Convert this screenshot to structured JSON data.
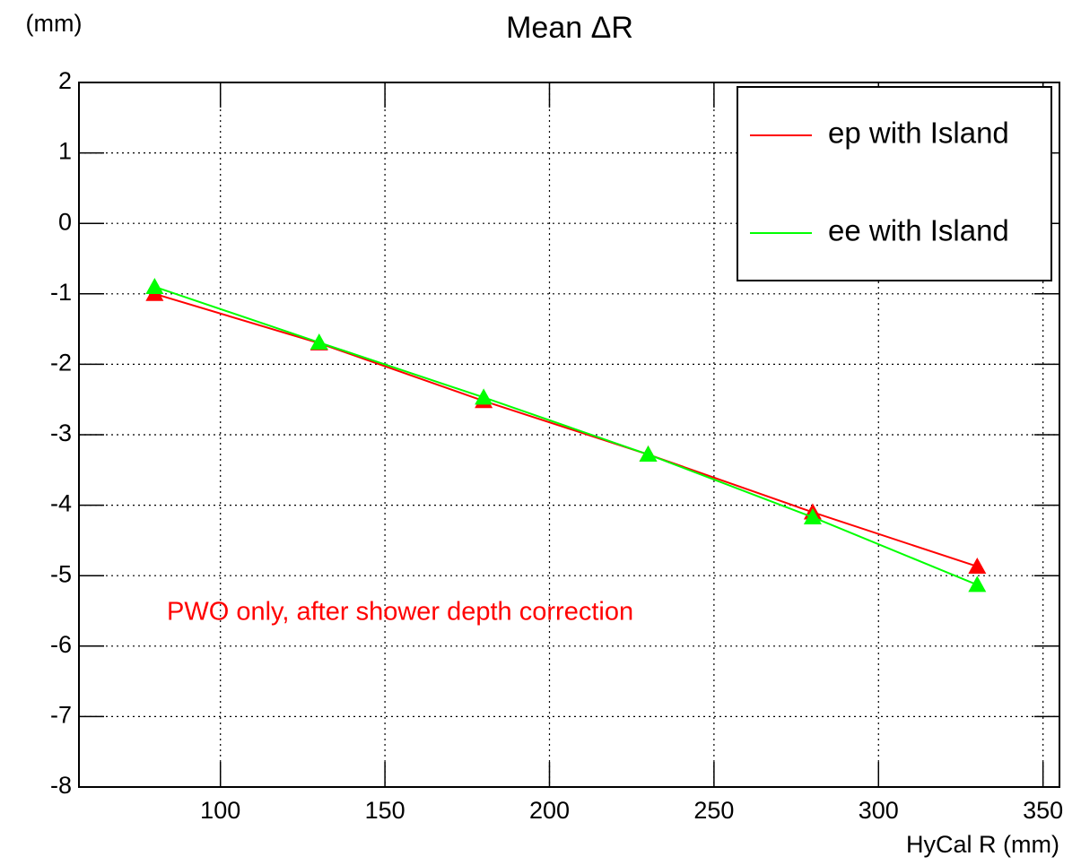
{
  "chart_data": {
    "type": "line",
    "title": "Mean ΔR",
    "y_label": "(mm)",
    "x_label": "HyCal R (mm)",
    "annotation": "PWO only, after shower depth correction",
    "x": [
      80,
      130,
      180,
      230,
      280,
      330
    ],
    "series": [
      {
        "name": "ep with Island",
        "color": "#ff0000",
        "values": [
          -1.0,
          -1.7,
          -2.52,
          -3.28,
          -4.1,
          -4.87
        ]
      },
      {
        "name": "ee with Island",
        "color": "#00ff00",
        "values": [
          -0.9,
          -1.69,
          -2.47,
          -3.28,
          -4.17,
          -5.13
        ]
      }
    ],
    "xlim": [
      57,
      355
    ],
    "xticks": [
      100,
      150,
      200,
      250,
      300,
      350
    ],
    "ylim": [
      -8,
      2
    ],
    "yticks": [
      -8,
      -7,
      -6,
      -5,
      -4,
      -3,
      -2,
      -1,
      0,
      1,
      2
    ],
    "grid": true,
    "legend": "top-right",
    "annotation_color": "#ff0000"
  }
}
